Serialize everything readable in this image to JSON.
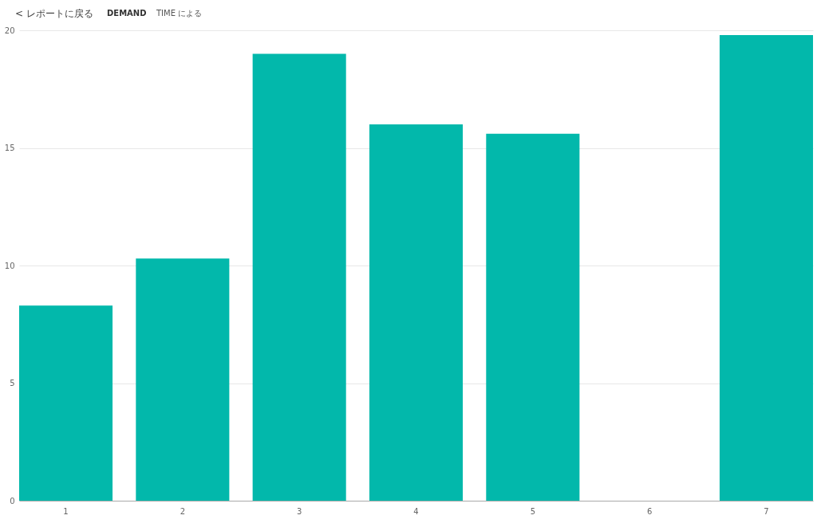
{
  "chart_data": {
    "type": "bar",
    "title": "DEMAND",
    "subtitle": "TIME による",
    "annotations": [
      "< レポートに戻る"
    ],
    "categories": [
      "1",
      "2",
      "3",
      "4",
      "5",
      "6",
      "7"
    ],
    "values": [
      8.3,
      10.3,
      19.0,
      16.0,
      15.6,
      null,
      19.8
    ],
    "color": "#02b8ab",
    "ylim": [
      0,
      20
    ],
    "yticks": [
      0,
      5,
      10,
      15,
      20
    ],
    "grid": "y"
  }
}
